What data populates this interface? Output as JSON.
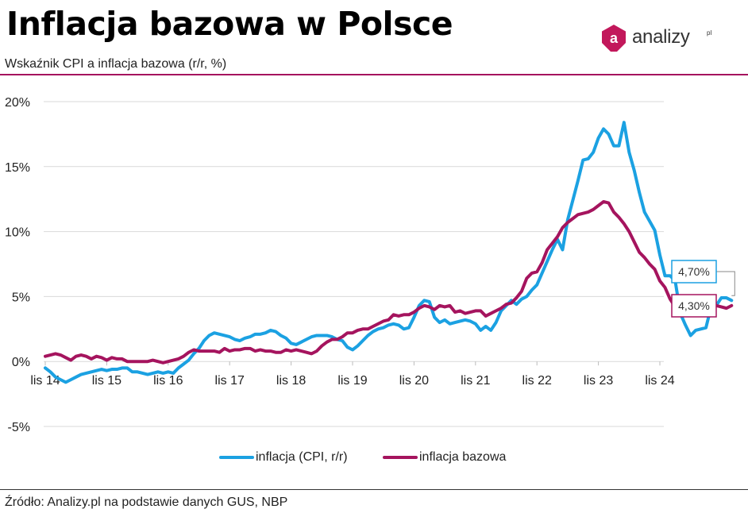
{
  "header": {
    "title": "Inflacja bazowa w Polsce",
    "subtitle": "Wskaźnik CPI a inflacja bazowa (r/r, %)"
  },
  "logo": {
    "text": "analizy",
    "suffix": "pl",
    "badge_letter": "a",
    "brand_color": "#c2185b"
  },
  "source": "Źródło: Analizy.pl na podstawie danych GUS, NBP",
  "colors": {
    "cpi": "#1ba1e2",
    "core": "#a5145e",
    "grid": "#d9d9d9",
    "rule": "#a5145e"
  },
  "chart_data": {
    "type": "line",
    "ylim": [
      -5,
      20
    ],
    "yticks": [
      -5,
      0,
      5,
      10,
      15,
      20
    ],
    "ytick_labels": [
      "-5%",
      "0%",
      "5%",
      "10%",
      "15%",
      "20%"
    ],
    "xtick_labels": [
      "lis 14",
      "lis 15",
      "lis 16",
      "lis 17",
      "lis 18",
      "lis 19",
      "lis 20",
      "lis 21",
      "lis 22",
      "lis 23",
      "lis 24"
    ],
    "x_start": "2014-01",
    "grid": "horizontal",
    "legend": "bottom",
    "series": [
      {
        "name": "inflacja (CPI, r/r)",
        "color_key": "cpi",
        "end_label": "4,70%",
        "values": [
          -0.5,
          -0.8,
          -1.2,
          -1.4,
          -1.6,
          -1.4,
          -1.2,
          -1.0,
          -0.9,
          -0.8,
          -0.7,
          -0.6,
          -0.7,
          -0.6,
          -0.6,
          -0.5,
          -0.5,
          -0.8,
          -0.8,
          -0.9,
          -1.0,
          -0.9,
          -0.8,
          -0.9,
          -0.8,
          -0.9,
          -0.5,
          -0.2,
          0.1,
          0.6,
          1.0,
          1.6,
          2.0,
          2.2,
          2.1,
          2.0,
          1.9,
          1.7,
          1.6,
          1.8,
          1.9,
          2.1,
          2.1,
          2.2,
          2.4,
          2.3,
          2.0,
          1.8,
          1.4,
          1.3,
          1.5,
          1.7,
          1.9,
          2.0,
          2.0,
          2.0,
          1.9,
          1.7,
          1.6,
          1.1,
          0.9,
          1.2,
          1.6,
          2.0,
          2.3,
          2.5,
          2.6,
          2.8,
          2.9,
          2.8,
          2.5,
          2.6,
          3.4,
          4.3,
          4.7,
          4.6,
          3.4,
          3.0,
          3.2,
          2.9,
          3.0,
          3.1,
          3.2,
          3.1,
          2.9,
          2.4,
          2.7,
          2.4,
          3.0,
          3.9,
          4.3,
          4.7,
          4.4,
          4.8,
          5.0,
          5.5,
          5.9,
          6.8,
          7.7,
          8.6,
          9.4,
          8.6,
          10.9,
          12.4,
          13.9,
          15.5,
          15.6,
          16.1,
          17.2,
          17.9,
          17.5,
          16.6,
          16.6,
          18.4,
          16.1,
          14.7,
          13.0,
          11.5,
          10.8,
          10.1,
          8.2,
          6.6,
          6.6,
          6.2,
          3.7,
          2.8,
          2.0,
          2.4,
          2.5,
          2.6,
          4.2,
          4.3,
          4.9,
          4.9,
          4.7
        ]
      },
      {
        "name": "inflacja bazowa",
        "color_key": "core",
        "end_label": "4,30%",
        "values": [
          0.4,
          0.5,
          0.6,
          0.5,
          0.3,
          0.1,
          0.4,
          0.5,
          0.4,
          0.2,
          0.4,
          0.3,
          0.1,
          0.3,
          0.2,
          0.2,
          0.0,
          0.0,
          0.0,
          0.0,
          0.0,
          0.1,
          0.0,
          -0.1,
          0.0,
          0.1,
          0.2,
          0.4,
          0.7,
          0.9,
          0.8,
          0.8,
          0.8,
          0.8,
          0.7,
          1.0,
          0.8,
          0.9,
          0.9,
          1.0,
          1.0,
          0.8,
          0.9,
          0.8,
          0.8,
          0.7,
          0.7,
          0.9,
          0.8,
          0.9,
          0.8,
          0.7,
          0.6,
          0.8,
          1.2,
          1.5,
          1.7,
          1.7,
          1.9,
          2.2,
          2.2,
          2.4,
          2.5,
          2.5,
          2.7,
          2.9,
          3.1,
          3.2,
          3.6,
          3.5,
          3.6,
          3.6,
          3.8,
          4.1,
          4.3,
          4.2,
          4.0,
          4.3,
          4.2,
          4.3,
          3.8,
          3.9,
          3.7,
          3.8,
          3.9,
          3.9,
          3.5,
          3.7,
          3.9,
          4.1,
          4.4,
          4.5,
          4.9,
          5.4,
          6.4,
          6.8,
          6.9,
          7.6,
          8.6,
          9.1,
          9.6,
          10.3,
          10.7,
          11.0,
          11.3,
          11.4,
          11.5,
          11.7,
          12.0,
          12.3,
          12.2,
          11.5,
          11.1,
          10.6,
          10.0,
          9.2,
          8.4,
          8.0,
          7.5,
          7.1,
          6.2,
          5.7,
          4.8,
          4.2,
          3.8,
          3.6,
          3.8,
          3.6,
          3.7,
          4.3,
          4.0,
          4.3,
          4.2,
          4.1,
          4.3
        ]
      }
    ]
  }
}
